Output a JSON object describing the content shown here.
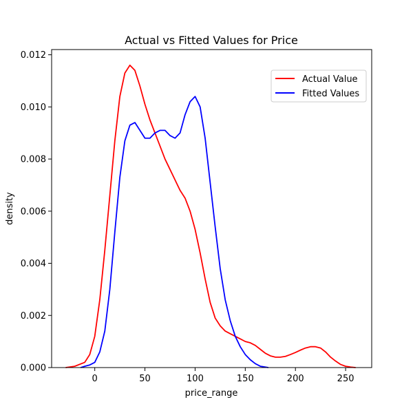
{
  "chart_data": {
    "type": "line",
    "title": "Actual vs Fitted Values for Price",
    "xlabel": "price_range",
    "ylabel": "density",
    "xlim": [
      -43,
      276
    ],
    "ylim": [
      0,
      0.0122
    ],
    "xticks": [
      0,
      50,
      100,
      150,
      200,
      250
    ],
    "yticks": [
      0.0,
      0.002,
      0.004,
      0.006,
      0.008,
      0.01,
      0.012
    ],
    "ytick_labels": [
      "0.000",
      "0.002",
      "0.004",
      "0.006",
      "0.008",
      "0.010",
      "0.012"
    ],
    "grid": false,
    "legend_position": "top-right",
    "series": [
      {
        "name": "Actual Value",
        "color": "#ff0000",
        "points": [
          [
            -29,
            0.0
          ],
          [
            -20,
            5e-05
          ],
          [
            -10,
            0.0002
          ],
          [
            -5,
            0.0005
          ],
          [
            0,
            0.0012
          ],
          [
            5,
            0.0026
          ],
          [
            10,
            0.0045
          ],
          [
            15,
            0.0066
          ],
          [
            20,
            0.0087
          ],
          [
            25,
            0.0104
          ],
          [
            30,
            0.0113
          ],
          [
            35,
            0.0116
          ],
          [
            40,
            0.0114
          ],
          [
            45,
            0.0108
          ],
          [
            50,
            0.0101
          ],
          [
            55,
            0.0095
          ],
          [
            60,
            0.009
          ],
          [
            65,
            0.0085
          ],
          [
            70,
            0.008
          ],
          [
            75,
            0.0076
          ],
          [
            80,
            0.0072
          ],
          [
            85,
            0.0068
          ],
          [
            90,
            0.0065
          ],
          [
            95,
            0.006
          ],
          [
            100,
            0.0053
          ],
          [
            105,
            0.0044
          ],
          [
            110,
            0.0034
          ],
          [
            115,
            0.0025
          ],
          [
            120,
            0.0019
          ],
          [
            125,
            0.0016
          ],
          [
            130,
            0.0014
          ],
          [
            135,
            0.0013
          ],
          [
            140,
            0.0012
          ],
          [
            145,
            0.0011
          ],
          [
            150,
            0.001
          ],
          [
            155,
            0.00095
          ],
          [
            160,
            0.00085
          ],
          [
            165,
            0.0007
          ],
          [
            170,
            0.00055
          ],
          [
            175,
            0.00045
          ],
          [
            180,
            0.0004
          ],
          [
            185,
            0.0004
          ],
          [
            190,
            0.00043
          ],
          [
            195,
            0.0005
          ],
          [
            200,
            0.00058
          ],
          [
            205,
            0.00067
          ],
          [
            210,
            0.00075
          ],
          [
            215,
            0.0008
          ],
          [
            220,
            0.0008
          ],
          [
            225,
            0.00075
          ],
          [
            230,
            0.0006
          ],
          [
            235,
            0.0004
          ],
          [
            240,
            0.00025
          ],
          [
            245,
            0.00012
          ],
          [
            250,
            5e-05
          ],
          [
            255,
            2e-05
          ],
          [
            260,
            0.0
          ]
        ]
      },
      {
        "name": "Fitted Values",
        "color": "#0000ff",
        "points": [
          [
            -14,
            0.0
          ],
          [
            -10,
            5e-05
          ],
          [
            -5,
            0.0001
          ],
          [
            0,
            0.0002
          ],
          [
            5,
            0.0006
          ],
          [
            10,
            0.0014
          ],
          [
            15,
            0.003
          ],
          [
            20,
            0.0052
          ],
          [
            25,
            0.0073
          ],
          [
            30,
            0.0087
          ],
          [
            35,
            0.0093
          ],
          [
            40,
            0.0094
          ],
          [
            45,
            0.0091
          ],
          [
            50,
            0.0088
          ],
          [
            55,
            0.0088
          ],
          [
            60,
            0.009
          ],
          [
            65,
            0.0091
          ],
          [
            70,
            0.0091
          ],
          [
            75,
            0.0089
          ],
          [
            80,
            0.0088
          ],
          [
            85,
            0.009
          ],
          [
            90,
            0.0097
          ],
          [
            95,
            0.0102
          ],
          [
            100,
            0.0104
          ],
          [
            105,
            0.01
          ],
          [
            110,
            0.0088
          ],
          [
            115,
            0.0071
          ],
          [
            120,
            0.0054
          ],
          [
            125,
            0.0038
          ],
          [
            130,
            0.0026
          ],
          [
            135,
            0.0018
          ],
          [
            140,
            0.0012
          ],
          [
            145,
            0.0008
          ],
          [
            150,
            0.0005
          ],
          [
            155,
            0.0003
          ],
          [
            160,
            0.00015
          ],
          [
            165,
            5e-05
          ],
          [
            170,
            2e-05
          ],
          [
            173,
            0.0
          ]
        ]
      }
    ]
  }
}
